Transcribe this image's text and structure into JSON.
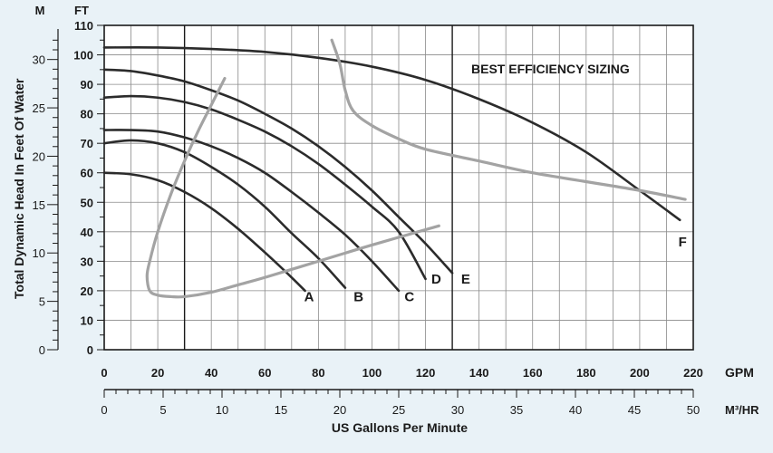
{
  "chart_data": {
    "type": "line",
    "title": "",
    "annotation": "BEST EFFICIENCY SIZING",
    "xlabel": "US Gallons Per Minute",
    "ylabel": "Total Dynamic Head In Feet Of Water",
    "x_unit": "GPM",
    "y_unit": "FT",
    "secondary_x_unit": "M³/HR",
    "secondary_y_unit": "M",
    "xlim": [
      0,
      220
    ],
    "ylim": [
      0,
      110
    ],
    "x_ticks": [
      0,
      20,
      40,
      60,
      80,
      100,
      120,
      140,
      160,
      180,
      200,
      220
    ],
    "y_ticks": [
      0,
      10,
      20,
      30,
      40,
      50,
      60,
      70,
      80,
      90,
      100,
      110
    ],
    "secondary_x_ticks": [
      0,
      5,
      10,
      15,
      20,
      25,
      30,
      35,
      40,
      45,
      50
    ],
    "secondary_y_ticks": [
      0,
      5,
      10,
      15,
      20,
      25,
      30
    ],
    "grid": true,
    "series": [
      {
        "name": "A",
        "color": "#2b2b2b",
        "x": [
          0,
          10,
          20,
          30,
          40,
          50,
          60,
          70,
          75
        ],
        "y": [
          60,
          59.5,
          57.5,
          53.5,
          48,
          41,
          33,
          24.5,
          20
        ]
      },
      {
        "name": "B",
        "color": "#2b2b2b",
        "x": [
          0,
          10,
          20,
          30,
          40,
          50,
          60,
          70,
          80,
          90
        ],
        "y": [
          70,
          71,
          70,
          67,
          62,
          56,
          48.5,
          39.5,
          31,
          21
        ]
      },
      {
        "name": "C",
        "color": "#2b2b2b",
        "x": [
          0,
          10,
          20,
          30,
          40,
          50,
          60,
          70,
          80,
          90,
          100,
          110
        ],
        "y": [
          74.5,
          74.5,
          74,
          72,
          69,
          65,
          60,
          53.5,
          46.5,
          39,
          30,
          20
        ]
      },
      {
        "name": "D",
        "color": "#2b2b2b",
        "x": [
          0,
          10,
          20,
          30,
          40,
          50,
          60,
          70,
          80,
          90,
          100,
          110,
          120
        ],
        "y": [
          85.5,
          86,
          85.5,
          84,
          81.5,
          78,
          74,
          69,
          63,
          56,
          48.5,
          40,
          24
        ]
      },
      {
        "name": "E",
        "color": "#2b2b2b",
        "x": [
          0,
          10,
          20,
          30,
          40,
          50,
          60,
          70,
          80,
          90,
          100,
          110,
          120,
          130
        ],
        "y": [
          95,
          94.5,
          93,
          91,
          88,
          84.5,
          80,
          75,
          69,
          62,
          54,
          45,
          36,
          26
        ]
      },
      {
        "name": "F",
        "color": "#2b2b2b",
        "x": [
          0,
          20,
          40,
          60,
          80,
          100,
          120,
          140,
          160,
          180,
          200,
          215
        ],
        "y": [
          102.5,
          102.5,
          102,
          101,
          99,
          96,
          91.5,
          85,
          77,
          67,
          54,
          44
        ]
      },
      {
        "name": "",
        "color": "#a3a3a3",
        "x": [
          45,
          40,
          35,
          30,
          25,
          20,
          17,
          16,
          17,
          20,
          25,
          30,
          40,
          50,
          60,
          80,
          100,
          125
        ],
        "y": [
          92,
          83,
          74,
          64,
          53,
          40,
          30,
          25,
          20,
          18.5,
          18,
          18,
          19.5,
          22,
          24.5,
          30,
          35.5,
          42
        ]
      },
      {
        "name": "",
        "color": "#a3a3a3",
        "x": [
          85,
          88,
          90,
          93,
          100,
          110,
          120,
          140,
          160,
          180,
          200,
          217
        ],
        "y": [
          105,
          97,
          88,
          81,
          76,
          71.5,
          68,
          64,
          60,
          57,
          54,
          51
        ]
      }
    ],
    "curve_labels": [
      {
        "text": "A",
        "x": 76.5,
        "y": 16.5
      },
      {
        "text": "B",
        "x": 95,
        "y": 16.5
      },
      {
        "text": "C",
        "x": 114,
        "y": 16.5
      },
      {
        "text": "D",
        "x": 124,
        "y": 22.5
      },
      {
        "text": "E",
        "x": 135,
        "y": 22.5
      },
      {
        "text": "F",
        "x": 216,
        "y": 35
      }
    ]
  }
}
